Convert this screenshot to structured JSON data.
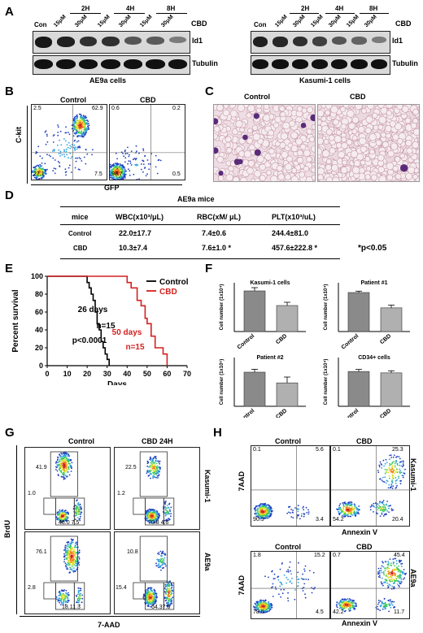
{
  "panel_a": {
    "label": "A",
    "left": {
      "con": "Con",
      "times": [
        "2H",
        "4H",
        "8H"
      ],
      "doses": [
        "15μM",
        "30μM",
        "15μM",
        "30μM",
        "15μM",
        "30μM"
      ],
      "cbd": "CBD",
      "row1": "Id1",
      "row2": "Tubulin",
      "caption": "AE9a cells",
      "intensity": [
        0.95,
        0.9,
        0.8,
        0.8,
        0.55,
        0.5,
        0.3
      ]
    },
    "right": {
      "con": "Con",
      "times": [
        "2H",
        "4H",
        "8H"
      ],
      "doses": [
        "15μM",
        "30μM",
        "15μM",
        "30μM",
        "15μM",
        "30μM"
      ],
      "cbd": "CBD",
      "row1": "Id1",
      "row2": "Tubulin",
      "caption": "Kasumi-1 cells",
      "intensity": [
        0.9,
        0.85,
        0.8,
        0.7,
        0.55,
        0.45,
        0.3
      ]
    }
  },
  "panel_b": {
    "label": "B",
    "ylabel": "C-kit",
    "xlabel": "GFP",
    "control": {
      "title": "Control",
      "ul": "2.5",
      "ur": "62.9",
      "ll": "27.1",
      "lr": "7.5"
    },
    "cbd": {
      "title": "CBD",
      "ul": "0.6",
      "ur": "0.2",
      "ll": "98.7",
      "lr": "0.5"
    }
  },
  "panel_c": {
    "label": "C",
    "control": "Control",
    "cbd": "CBD"
  },
  "panel_d": {
    "label": "D",
    "title": "AE9a mice",
    "headers": [
      "mice",
      "WBC(x10³/μL)",
      "RBC(xM/ μL)",
      "PLT(x10³/uL)"
    ],
    "rows": [
      [
        "Control",
        "22.0±17.7",
        "7.4±0.6",
        "244.4±81.0"
      ],
      [
        "CBD",
        "10.3±7.4",
        "7.6±1.0 *",
        "457.6±222.8 *"
      ]
    ],
    "note": "*p<0.05"
  },
  "panel_e": {
    "label": "E",
    "chart_data": {
      "type": "line",
      "ylabel": "Percent survival",
      "xlabel": "Days",
      "xlim": [
        0,
        70
      ],
      "ylim": [
        0,
        100
      ],
      "xticks": [
        "0",
        "10",
        "20",
        "30",
        "40",
        "50",
        "60",
        "70"
      ],
      "yticks": [
        "0",
        "20",
        "40",
        "60",
        "80",
        "100"
      ],
      "series": [
        {
          "name": "Control",
          "color": "#000000",
          "x": [
            0,
            20,
            20,
            21,
            21,
            22,
            22,
            23,
            23,
            24,
            24,
            25,
            25,
            26,
            26,
            27,
            27,
            28,
            28,
            29,
            29,
            30,
            30,
            31,
            31
          ],
          "y": [
            100,
            100,
            93,
            93,
            87,
            87,
            80,
            80,
            73,
            73,
            60,
            60,
            47,
            47,
            40,
            40,
            27,
            27,
            20,
            20,
            13,
            13,
            7,
            7,
            0
          ]
        },
        {
          "name": "CBD",
          "color": "#d42020",
          "x": [
            0,
            40,
            40,
            42,
            42,
            45,
            45,
            47,
            47,
            49,
            49,
            50,
            50,
            52,
            52,
            54,
            54,
            58,
            58,
            60,
            60
          ],
          "y": [
            100,
            100,
            93,
            93,
            87,
            87,
            73,
            73,
            67,
            67,
            53,
            53,
            47,
            47,
            33,
            33,
            20,
            20,
            13,
            13,
            0
          ]
        }
      ],
      "annotations": [
        {
          "text": "26 days",
          "color": "#000000"
        },
        {
          "text": "n=15",
          "color": "#000000"
        },
        {
          "text": "p<0.0001",
          "color": "#000000"
        },
        {
          "text": "50 days",
          "color": "#d42020"
        },
        {
          "text": "n=15",
          "color": "#d42020"
        }
      ]
    }
  },
  "panel_f": {
    "label": "F",
    "chart_data": [
      {
        "type": "bar",
        "title": "Kasumi-1 cells",
        "ylabel": "Cell number (1x10⁴)",
        "categories": [
          "Control",
          "CBD"
        ],
        "values": [
          25,
          16
        ],
        "errors": [
          2,
          2
        ],
        "ylim": [
          0,
          30
        ]
      },
      {
        "type": "bar",
        "title": "Patient #1",
        "ylabel": "Cell number (1x10⁴)",
        "categories": [
          "Control",
          "CBD"
        ],
        "values": [
          28,
          17
        ],
        "errors": [
          1,
          2
        ],
        "ylim": [
          0,
          35
        ]
      },
      {
        "type": "bar",
        "title": "Patient #2",
        "ylabel": "Cell number (1x10⁵)",
        "categories": [
          "Control",
          "CBD"
        ],
        "values": [
          17.5,
          12
        ],
        "errors": [
          1.5,
          3
        ],
        "ylim": [
          0,
          25
        ]
      },
      {
        "type": "bar",
        "title": "CD34+ cells",
        "ylabel": "Cell number (1x10⁴)",
        "categories": [
          "Control",
          "CBD"
        ],
        "values": [
          25,
          24
        ],
        "errors": [
          1.5,
          1.5
        ],
        "ylim": [
          0,
          35
        ]
      }
    ]
  },
  "panel_g": {
    "label": "G",
    "ylabel": "BrdU",
    "xlabel": "7-AAD",
    "col1": "Control",
    "col2": "CBD  24H",
    "row1": "Kasumi-1",
    "row2": "AE9a",
    "kc": {
      "top": "41.9",
      "left": "1.0",
      "bottom": "48.0  7.5"
    },
    "kb": {
      "top": "22.5",
      "left": "1.2",
      "bottom": "70.8  4.6"
    },
    "ac": {
      "top": "76.1",
      "left": "2.8",
      "bottom": "18.11.3"
    },
    "ab": {
      "top": "10.8",
      "left": "15.4",
      "bottom": "64.37.5"
    }
  },
  "panel_h": {
    "label": "H",
    "ylabel": "7AAD",
    "xlabel": "Annexin V",
    "col1": "Control",
    "col2": "CBD",
    "row1": "Kasumi-1",
    "row2": "AE9a",
    "kc": {
      "ul": "0.1",
      "ur": "5.6",
      "ll": "90.9",
      "lr": "3.4"
    },
    "kb": {
      "ul": "0.1",
      "ur": "25.3",
      "ll": "54.2",
      "lr": "20.4"
    },
    "ac": {
      "ul": "1.8",
      "ur": "15.2",
      "ll": "78.5",
      "lr": "4.5"
    },
    "ab": {
      "ul": "0.7",
      "ur": "45.4",
      "ll": "42.2",
      "lr": "11.7"
    }
  }
}
